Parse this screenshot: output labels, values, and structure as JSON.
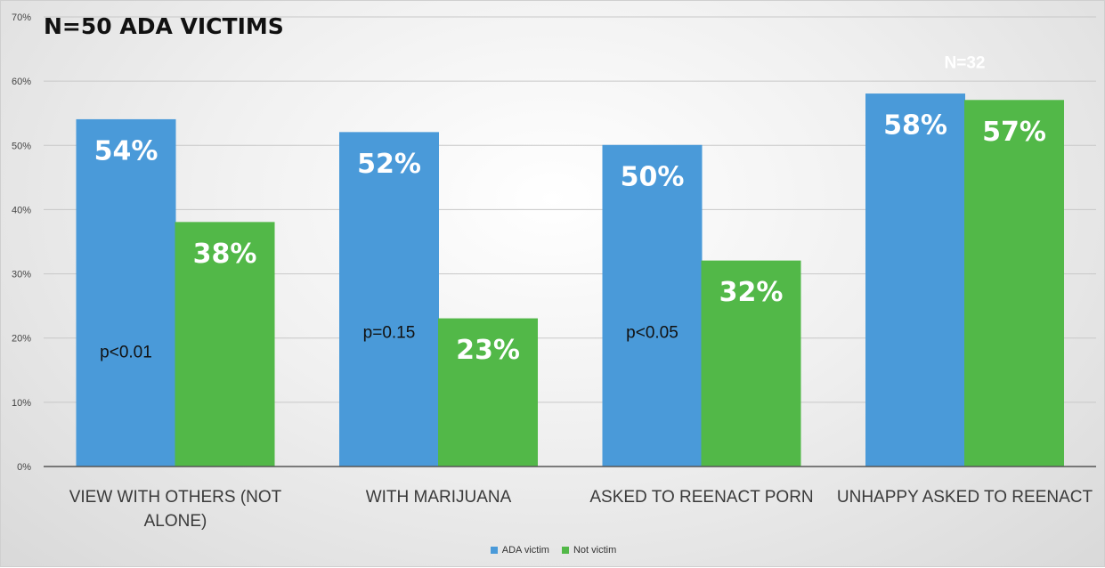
{
  "chart_data": {
    "type": "bar",
    "title": "N=50 ADA VICTIMS",
    "categories": [
      [
        "VIEW WITH OTHERS (NOT",
        "ALONE)"
      ],
      [
        "WITH MARIJUANA"
      ],
      [
        "ASKED TO REENACT PORN"
      ],
      [
        "UNHAPPY ASKED TO REENACT"
      ]
    ],
    "series": [
      {
        "name": "ADA victim",
        "color": "#4a9ad9",
        "values": [
          54,
          52,
          50,
          58
        ],
        "labels": [
          "54%",
          "52%",
          "50%",
          "58%"
        ]
      },
      {
        "name": "Not victim",
        "color": "#52b848",
        "values": [
          38,
          23,
          32,
          57
        ],
        "labels": [
          "38%",
          "23%",
          "32%",
          "57%"
        ]
      }
    ],
    "ylim": [
      0,
      70
    ],
    "yticks": [
      0,
      10,
      20,
      30,
      40,
      50,
      60,
      70
    ],
    "ytick_labels": [
      "0%",
      "10%",
      "20%",
      "30%",
      "40%",
      "50%",
      "60%",
      "70%"
    ],
    "grid": true,
    "legend_position": "bottom",
    "annotations": [
      {
        "text": "p<0.01",
        "category": 0,
        "value": 17
      },
      {
        "text": "p=0.15",
        "category": 1,
        "value": 20
      },
      {
        "text": "p<0.05",
        "category": 2,
        "value": 20
      },
      {
        "text": "N=32",
        "category": 3,
        "value": 62
      }
    ]
  }
}
